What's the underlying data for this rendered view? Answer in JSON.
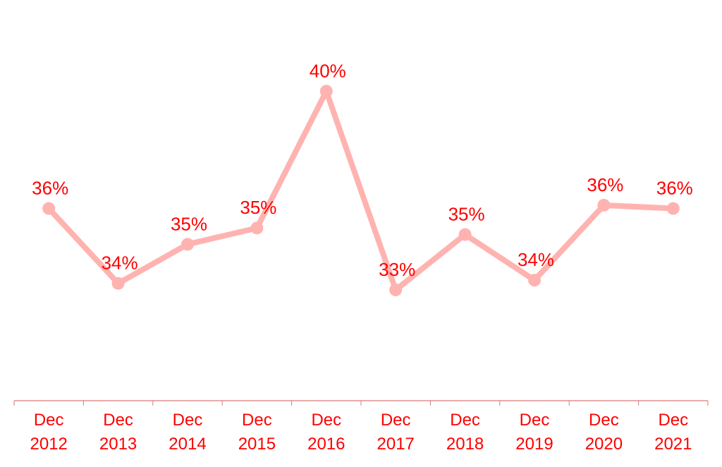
{
  "chart_data": {
    "type": "line",
    "categories": [
      [
        "Dec",
        "2012"
      ],
      [
        "Dec",
        "2013"
      ],
      [
        "Dec",
        "2014"
      ],
      [
        "Dec",
        "2015"
      ],
      [
        "Dec",
        "2016"
      ],
      [
        "Dec",
        "2017"
      ],
      [
        "Dec",
        "2018"
      ],
      [
        "Dec",
        "2019"
      ],
      [
        "Dec",
        "2020"
      ],
      [
        "Dec",
        "2021"
      ]
    ],
    "series": [
      {
        "values": [
          35.9,
          33.6,
          34.8,
          35.3,
          39.5,
          33.4,
          35.1,
          33.7,
          36.0,
          35.9
        ],
        "data_labels": [
          "36%",
          "34%",
          "35%",
          "35%",
          "40%",
          "33%",
          "35%",
          "34%",
          "36%",
          "36%"
        ]
      }
    ],
    "ylim": [
      30,
      41
    ],
    "grid": false,
    "legend": "none",
    "colors": {
      "line": "#ffb3b0",
      "label": "#ff0000",
      "axis": "#d97a7a"
    }
  }
}
